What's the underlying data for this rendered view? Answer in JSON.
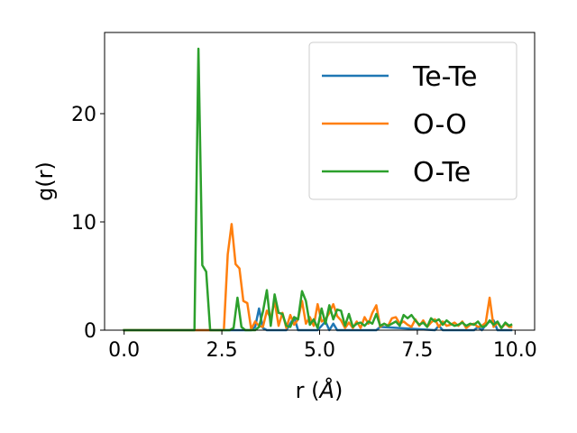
{
  "chart_data": {
    "type": "line",
    "title": "",
    "xlabel_text": "r (",
    "xlabel_unit": "Å",
    "xlabel_close": ")",
    "ylabel": "g(r)",
    "xlim": [
      -0.5,
      10.5
    ],
    "ylim": [
      0,
      27.5
    ],
    "xticks": [
      0.0,
      2.5,
      5.0,
      7.5,
      10.0
    ],
    "xtick_labels": [
      "0.0",
      "2.5",
      "5.0",
      "7.5",
      "10.0"
    ],
    "yticks": [
      0,
      10,
      20
    ],
    "ytick_labels": [
      "0",
      "10",
      "20"
    ],
    "grid": false,
    "legend_position": "top-right",
    "series": [
      {
        "name": "Te-Te",
        "color": "#1f77b4",
        "x": [
          0,
          3.25,
          3.35,
          3.45,
          3.55,
          3.65,
          3.75,
          3.85,
          4.15,
          4.25,
          4.35,
          4.45,
          4.95,
          5.05,
          5.15,
          5.25,
          5.35,
          5.45,
          5.55,
          6.45,
          6.55,
          7.95,
          8.05,
          8.15,
          8.95,
          9.05,
          9.15,
          9.25,
          9.35,
          9.45,
          9.55,
          9.9
        ],
        "y": [
          0,
          0,
          0.3,
          2.0,
          0.2,
          0,
          0,
          0,
          0,
          0.6,
          1.2,
          0,
          0,
          0.4,
          0.8,
          0,
          0.6,
          0,
          0,
          0,
          0.3,
          0,
          0.4,
          0,
          0,
          0.3,
          0,
          0.5,
          0.8,
          0.9,
          0,
          0
        ]
      },
      {
        "name": "O-O",
        "color": "#ff7f0e",
        "x": [
          0,
          2.55,
          2.65,
          2.75,
          2.85,
          2.95,
          3.05,
          3.15,
          3.25,
          3.35,
          3.45,
          3.55,
          3.65,
          3.75,
          3.85,
          3.95,
          4.05,
          4.15,
          4.25,
          4.35,
          4.45,
          4.55,
          4.65,
          4.75,
          4.85,
          4.95,
          5.05,
          5.15,
          5.25,
          5.35,
          5.45,
          5.55,
          5.65,
          5.75,
          5.85,
          5.95,
          6.05,
          6.15,
          6.25,
          6.35,
          6.45,
          6.55,
          6.65,
          6.75,
          6.85,
          6.95,
          7.05,
          7.15,
          7.25,
          7.35,
          7.45,
          7.55,
          7.65,
          7.75,
          7.85,
          7.95,
          8.05,
          8.15,
          8.25,
          8.35,
          8.45,
          8.55,
          8.65,
          8.75,
          8.85,
          8.95,
          9.05,
          9.15,
          9.25,
          9.35,
          9.45,
          9.55,
          9.65,
          9.75,
          9.85,
          9.9
        ],
        "y": [
          0,
          0,
          7.0,
          9.8,
          6.1,
          5.7,
          2.7,
          2.5,
          0.1,
          0.8,
          0.4,
          0.3,
          1.8,
          1.1,
          2.7,
          0.4,
          1.6,
          0.2,
          1.4,
          0.5,
          1.0,
          2.7,
          0.6,
          1.2,
          0.4,
          2.4,
          0.8,
          1.0,
          1.6,
          2.4,
          1.3,
          0.9,
          0.2,
          0.7,
          0.2,
          0.8,
          0.2,
          1.2,
          0.6,
          1.6,
          2.3,
          0.3,
          0.6,
          0.4,
          1.1,
          1.2,
          0.6,
          0.8,
          0.5,
          0.3,
          1.0,
          0.4,
          0.9,
          0.3,
          0.7,
          1.0,
          0.3,
          0.8,
          0.4,
          0.5,
          0.7,
          0.4,
          0.8,
          0.2,
          0.5,
          0.6,
          0.3,
          0.4,
          0.7,
          3.0,
          0.3,
          0.7,
          0.2,
          0.6,
          0.3,
          0.3
        ]
      },
      {
        "name": "O-Te",
        "color": "#2ca02c",
        "x": [
          0,
          1.8,
          1.9,
          2.0,
          2.1,
          2.2,
          2.3,
          2.7,
          2.8,
          2.9,
          3.0,
          3.1,
          3.35,
          3.45,
          3.55,
          3.65,
          3.75,
          3.85,
          3.95,
          4.05,
          4.15,
          4.25,
          4.35,
          4.45,
          4.55,
          4.65,
          4.75,
          4.85,
          4.95,
          5.05,
          5.15,
          5.25,
          5.35,
          5.45,
          5.55,
          5.65,
          5.75,
          5.85,
          5.95,
          6.05,
          6.15,
          6.25,
          6.35,
          6.45,
          6.55,
          6.65,
          6.75,
          6.85,
          6.95,
          7.05,
          7.15,
          7.25,
          7.35,
          7.45,
          7.55,
          7.65,
          7.75,
          7.85,
          7.95,
          8.05,
          8.15,
          8.25,
          8.35,
          8.45,
          8.55,
          8.65,
          8.75,
          8.85,
          8.95,
          9.05,
          9.15,
          9.25,
          9.35,
          9.45,
          9.55,
          9.65,
          9.75,
          9.85,
          9.9
        ],
        "y": [
          0,
          0,
          26.0,
          6.0,
          5.4,
          0,
          0,
          0,
          0.2,
          3.0,
          0.3,
          0,
          0,
          0.3,
          1.7,
          3.7,
          0.4,
          3.3,
          1.6,
          1.5,
          0.4,
          0.3,
          1.2,
          1.0,
          3.6,
          2.7,
          0.5,
          1.0,
          0.2,
          2.0,
          0.6,
          2.3,
          1.0,
          1.9,
          1.8,
          0.4,
          1.5,
          0.3,
          0.6,
          0.7,
          0.4,
          0.8,
          0.6,
          1.5,
          0.4,
          0.6,
          0.4,
          0.6,
          0.8,
          0.4,
          1.4,
          1.1,
          1.4,
          0.9,
          0.5,
          0.7,
          0.3,
          1.1,
          0.8,
          1.0,
          0.5,
          0.9,
          0.6,
          0.4,
          0.5,
          0.7,
          0.4,
          0.6,
          0.5,
          0.8,
          0.3,
          0.4,
          0.9,
          0.5,
          0.8,
          0.2,
          0.7,
          0.4,
          0.5
        ]
      }
    ]
  }
}
